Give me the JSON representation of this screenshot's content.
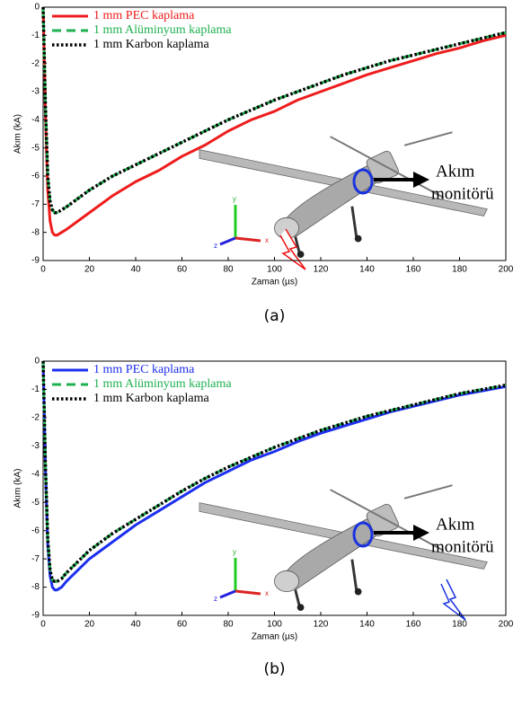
{
  "chart_data": [
    {
      "type": "line",
      "caption": "(a)",
      "xlabel": "Zaman (µs)",
      "ylabel": "Akım (kA)",
      "annotations": [
        "Akım",
        "monitörü",
        "y",
        "z",
        "x"
      ],
      "xlim": [
        0,
        200
      ],
      "ylim": [
        -9,
        0
      ],
      "xticks": [
        0,
        20,
        40,
        60,
        80,
        100,
        120,
        140,
        160,
        180,
        200
      ],
      "yticks": [
        0,
        -1,
        -2,
        -3,
        -4,
        -5,
        -6,
        -7,
        -8,
        -9
      ],
      "legend": "upper left",
      "x": [
        0,
        1,
        2,
        3,
        4,
        5,
        6,
        8,
        10,
        15,
        20,
        30,
        40,
        50,
        60,
        70,
        80,
        90,
        100,
        110,
        120,
        130,
        140,
        150,
        160,
        170,
        180,
        190,
        200
      ],
      "series": [
        {
          "name": "1 mm PEC kaplama",
          "color": "#ee1c1c",
          "style": "solid",
          "values": [
            0,
            -3.8,
            -6.5,
            -7.6,
            -8.0,
            -8.1,
            -8.1,
            -8.0,
            -7.9,
            -7.6,
            -7.3,
            -6.7,
            -6.2,
            -5.8,
            -5.3,
            -4.9,
            -4.4,
            -4.0,
            -3.7,
            -3.3,
            -3.0,
            -2.7,
            -2.4,
            -2.15,
            -1.9,
            -1.65,
            -1.45,
            -1.2,
            -1.0
          ]
        },
        {
          "name": "1 mm Alüminyum kaplama",
          "color": "#1fb050",
          "style": "dashed",
          "values": [
            0,
            -3.5,
            -6.0,
            -6.9,
            -7.2,
            -7.3,
            -7.3,
            -7.2,
            -7.1,
            -6.8,
            -6.5,
            -6.0,
            -5.6,
            -5.2,
            -4.8,
            -4.4,
            -4.0,
            -3.65,
            -3.3,
            -3.0,
            -2.7,
            -2.4,
            -2.15,
            -1.9,
            -1.7,
            -1.5,
            -1.3,
            -1.1,
            -0.9
          ]
        },
        {
          "name": "1 mm Karbon kaplama",
          "color": "#000000",
          "style": "dotted",
          "values": [
            0,
            -3.5,
            -6.0,
            -6.9,
            -7.2,
            -7.3,
            -7.3,
            -7.2,
            -7.1,
            -6.8,
            -6.5,
            -6.0,
            -5.6,
            -5.2,
            -4.8,
            -4.4,
            -4.0,
            -3.65,
            -3.3,
            -3.0,
            -2.7,
            -2.4,
            -2.15,
            -1.9,
            -1.7,
            -1.5,
            -1.3,
            -1.1,
            -0.9
          ]
        }
      ]
    },
    {
      "type": "line",
      "caption": "(b)",
      "xlabel": "Zaman (µs)",
      "ylabel": "Akım (kA)",
      "annotations": [
        "Akım",
        "monitörü",
        "y",
        "z",
        "x"
      ],
      "xlim": [
        0,
        200
      ],
      "ylim": [
        -9,
        0
      ],
      "xticks": [
        0,
        20,
        40,
        60,
        80,
        100,
        120,
        140,
        160,
        180,
        200
      ],
      "yticks": [
        0,
        -1,
        -2,
        -3,
        -4,
        -5,
        -6,
        -7,
        -8,
        -9
      ],
      "legend": "upper left",
      "x": [
        0,
        1,
        2,
        3,
        4,
        5,
        6,
        8,
        10,
        15,
        20,
        30,
        40,
        50,
        60,
        70,
        80,
        90,
        100,
        110,
        120,
        130,
        140,
        150,
        160,
        170,
        180,
        190,
        200
      ],
      "series": [
        {
          "name": "1 mm PEC kaplama",
          "color": "#1c2fee",
          "style": "solid",
          "values": [
            0,
            -3.8,
            -6.5,
            -7.6,
            -8.0,
            -8.1,
            -8.1,
            -8.0,
            -7.8,
            -7.4,
            -7.0,
            -6.4,
            -5.8,
            -5.3,
            -4.8,
            -4.3,
            -3.9,
            -3.5,
            -3.2,
            -2.85,
            -2.55,
            -2.3,
            -2.05,
            -1.8,
            -1.6,
            -1.4,
            -1.2,
            -1.05,
            -0.9
          ]
        },
        {
          "name": "1 mm Alüminyum kaplama",
          "color": "#1fb050",
          "style": "dashed",
          "values": [
            0,
            -3.7,
            -6.3,
            -7.4,
            -7.75,
            -7.8,
            -7.8,
            -7.7,
            -7.5,
            -7.1,
            -6.7,
            -6.1,
            -5.6,
            -5.1,
            -4.6,
            -4.15,
            -3.75,
            -3.4,
            -3.05,
            -2.75,
            -2.45,
            -2.2,
            -1.95,
            -1.75,
            -1.55,
            -1.35,
            -1.15,
            -1.0,
            -0.85
          ]
        },
        {
          "name": "1 mm Karbon kaplama",
          "color": "#000000",
          "style": "dotted",
          "values": [
            0,
            -3.7,
            -6.3,
            -7.4,
            -7.75,
            -7.8,
            -7.8,
            -7.7,
            -7.5,
            -7.1,
            -6.7,
            -6.1,
            -5.6,
            -5.1,
            -4.6,
            -4.15,
            -3.75,
            -3.4,
            -3.05,
            -2.75,
            -2.45,
            -2.2,
            -1.95,
            -1.75,
            -1.55,
            -1.35,
            -1.15,
            -1.0,
            -0.85
          ]
        }
      ]
    }
  ]
}
